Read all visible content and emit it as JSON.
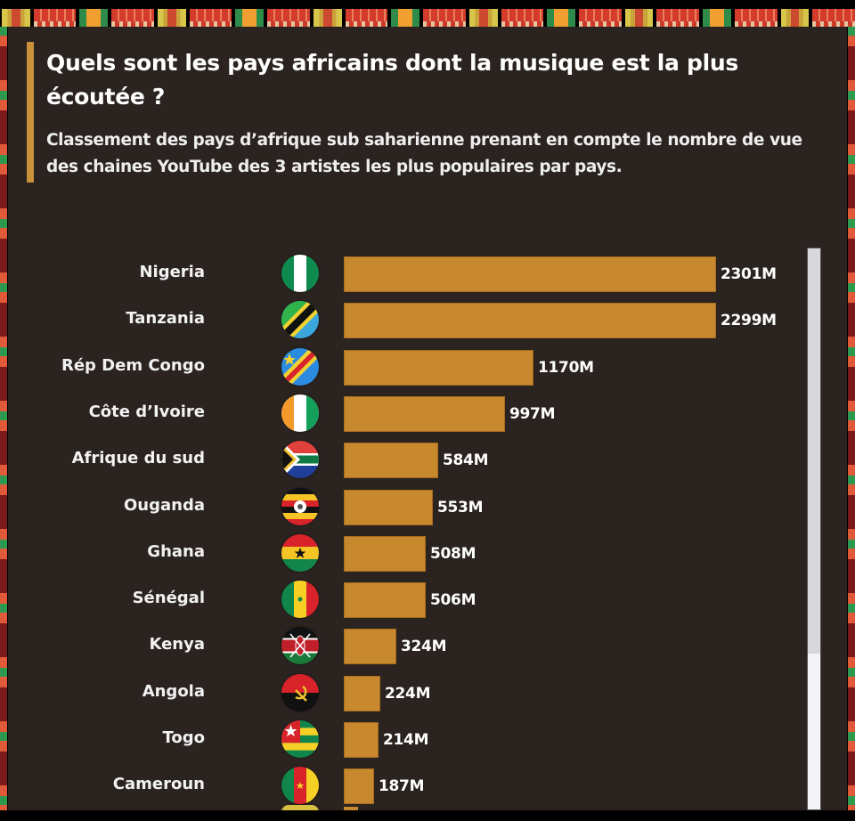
{
  "header": {
    "title": "Quels sont les pays africains dont la musique est la plus écoutée ?",
    "subtitle": "Classement des pays d’afrique sub saharienne prenant en compte le nombre de vue des chaines YouTube des 3 artistes les plus populaires par pays."
  },
  "colors": {
    "background": "#2a2320",
    "bar": "#c8892e",
    "accent": "#c8913a",
    "text": "#ffffff"
  },
  "rows": [
    {
      "country": "Nigeria",
      "flag": "nigeria-flag-icon",
      "value": 2301,
      "label": "2301M"
    },
    {
      "country": "Tanzania",
      "flag": "tanzania-flag-icon",
      "value": 2299,
      "label": "2299M"
    },
    {
      "country": "Rép Dem Congo",
      "flag": "drc-flag-icon",
      "value": 1170,
      "label": "1170M"
    },
    {
      "country": "Côte d’Ivoire",
      "flag": "cote-divoire-flag-icon",
      "value": 997,
      "label": "997M"
    },
    {
      "country": "Afrique du sud",
      "flag": "south-africa-flag-icon",
      "value": 584,
      "label": "584M"
    },
    {
      "country": "Ouganda",
      "flag": "uganda-flag-icon",
      "value": 553,
      "label": "553M"
    },
    {
      "country": "Ghana",
      "flag": "ghana-flag-icon",
      "value": 508,
      "label": "508M"
    },
    {
      "country": "Sénégal",
      "flag": "senegal-flag-icon",
      "value": 506,
      "label": "506M"
    },
    {
      "country": "Kenya",
      "flag": "kenya-flag-icon",
      "value": 324,
      "label": "324M"
    },
    {
      "country": "Angola",
      "flag": "angola-flag-icon",
      "value": 224,
      "label": "224M"
    },
    {
      "country": "Togo",
      "flag": "togo-flag-icon",
      "value": 214,
      "label": "214M"
    },
    {
      "country": "Cameroun",
      "flag": "cameroon-flag-icon",
      "value": 187,
      "label": "187M"
    }
  ],
  "chart_data": {
    "type": "bar",
    "orientation": "horizontal",
    "title": "Quels sont les pays africains dont la musique est la plus écoutée ?",
    "subtitle": "Classement des pays d’afrique sub saharienne prenant en compte le nombre de vue des chaines YouTube des 3 artistes les plus populaires par pays.",
    "categories": [
      "Nigeria",
      "Tanzania",
      "Rép Dem Congo",
      "Côte d’Ivoire",
      "Afrique du sud",
      "Ouganda",
      "Ghana",
      "Sénégal",
      "Kenya",
      "Angola",
      "Togo",
      "Cameroun"
    ],
    "values": [
      2301,
      2299,
      1170,
      997,
      584,
      553,
      508,
      506,
      324,
      224,
      214,
      187
    ],
    "value_labels": [
      "2301M",
      "2299M",
      "1170M",
      "997M",
      "584M",
      "553M",
      "508M",
      "506M",
      "324M",
      "224M",
      "214M",
      "187M"
    ],
    "unit": "M",
    "xlabel": "",
    "ylabel": "",
    "grid": false,
    "legend": null
  }
}
